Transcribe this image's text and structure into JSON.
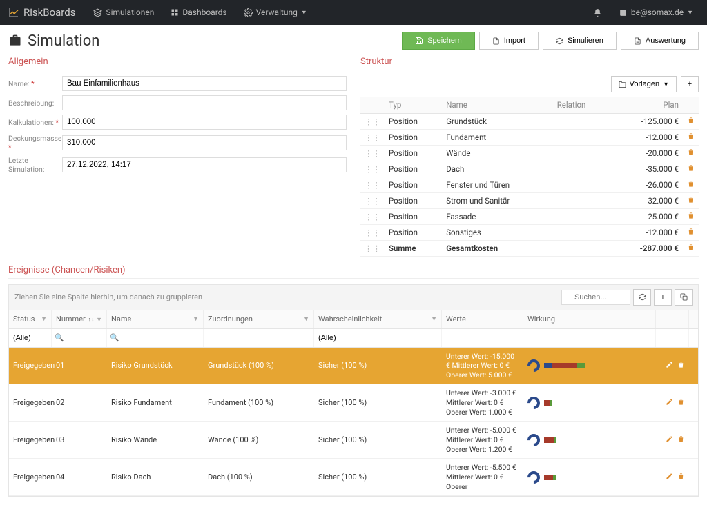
{
  "nav": {
    "brand": "RiskBoards",
    "items": [
      {
        "label": "Simulationen",
        "icon": "layers"
      },
      {
        "label": "Dashboards",
        "icon": "grid"
      },
      {
        "label": "Verwaltung",
        "icon": "gear",
        "caret": true
      }
    ],
    "user": "be@somax.de"
  },
  "page": {
    "title": "Simulation",
    "buttons": {
      "save": "Speichern",
      "import": "Import",
      "simulate": "Simulieren",
      "report": "Auswertung"
    }
  },
  "allgemein": {
    "heading": "Allgemein",
    "labels": {
      "name": "Name:",
      "beschreibung": "Beschreibung:",
      "kalkulationen": "Kalkulationen:",
      "deckungsmasse": "Deckungsmasse:",
      "letzte": "Letzte Simulation:"
    },
    "values": {
      "name": "Bau Einfamilienhaus",
      "beschreibung": "",
      "kalkulationen": "100.000",
      "deckungsmasse": "310.000",
      "letzte": "27.12.2022, 14:17"
    }
  },
  "struktur": {
    "heading": "Struktur",
    "vorlagen": "Vorlagen",
    "cols": {
      "typ": "Typ",
      "name": "Name",
      "relation": "Relation",
      "plan": "Plan"
    },
    "rows": [
      {
        "typ": "Position",
        "name": "Grundstück",
        "plan": "-125.000 €"
      },
      {
        "typ": "Position",
        "name": "Fundament",
        "plan": "-12.000 €"
      },
      {
        "typ": "Position",
        "name": "Wände",
        "plan": "-20.000 €"
      },
      {
        "typ": "Position",
        "name": "Dach",
        "plan": "-35.000 €"
      },
      {
        "typ": "Position",
        "name": "Fenster und Türen",
        "plan": "-26.000 €"
      },
      {
        "typ": "Position",
        "name": "Strom und Sanitär",
        "plan": "-32.000 €"
      },
      {
        "typ": "Position",
        "name": "Fassade",
        "plan": "-25.000 €"
      },
      {
        "typ": "Position",
        "name": "Sonstiges",
        "plan": "-12.000 €"
      }
    ],
    "sum": {
      "typ": "Summe",
      "name": "Gesamtkosten",
      "plan": "-287.000 €"
    }
  },
  "events": {
    "heading": "Ereignisse (Chancen/Risiken)",
    "group_hint": "Ziehen Sie eine Spalte hierhin, um danach zu gruppieren",
    "search_placeholder": "Suchen...",
    "cols": {
      "status": "Status",
      "nummer": "Nummer",
      "name": "Name",
      "zuord": "Zuordnungen",
      "wahr": "Wahrscheinlichkeit",
      "werte": "Werte",
      "wirk": "Wirkung"
    },
    "filter_all": "(Alle)",
    "rows": [
      {
        "sel": true,
        "status": "Freigegeben",
        "nummer": "01",
        "name": "Risiko Grundstück",
        "zuord": "Grundstück (100 %)",
        "wahr": "Sicher (100 %)",
        "werte": "Unterer Wert: -15.000 € Mittlerer Wert: 0 € Oberer Wert: 5.000 €",
        "bars": [
          {
            "c": "#2b4a8b",
            "w": 12
          },
          {
            "c": "#a63a2a",
            "w": 36
          },
          {
            "c": "#5a9a3a",
            "w": 12
          }
        ]
      },
      {
        "sel": false,
        "status": "Freigegeben",
        "nummer": "02",
        "name": "Risiko Fundament",
        "zuord": "Fundament (100 %)",
        "wahr": "Sicher (100 %)",
        "werte": "Unterer Wert: -3.000 € Mittlerer Wert: 0 € Oberer Wert: 1.000 €",
        "bars": [
          {
            "c": "#a63a2a",
            "w": 9
          },
          {
            "c": "#5a9a3a",
            "w": 3
          }
        ]
      },
      {
        "sel": false,
        "status": "Freigegeben",
        "nummer": "03",
        "name": "Risiko Wände",
        "zuord": "Wände (100 %)",
        "wahr": "Sicher (100 %)",
        "werte": "Unterer Wert: -5.000 € Mittlerer Wert: 0 € Oberer Wert: 1.200 €",
        "bars": [
          {
            "c": "#a63a2a",
            "w": 14
          },
          {
            "c": "#5a9a3a",
            "w": 4
          }
        ]
      },
      {
        "sel": false,
        "status": "Freigegeben",
        "nummer": "04",
        "name": "Risiko Dach",
        "zuord": "Dach (100 %)",
        "wahr": "Sicher (100 %)",
        "werte": "Unterer Wert: -5.500 € Mittlerer Wert: 0 € Oberer",
        "bars": [
          {
            "c": "#a63a2a",
            "w": 13
          },
          {
            "c": "#5a9a3a",
            "w": 4
          }
        ]
      }
    ]
  },
  "colors": {
    "accent_orange": "#e6a532",
    "nav_bg": "#222529",
    "success": "#6fb955"
  }
}
